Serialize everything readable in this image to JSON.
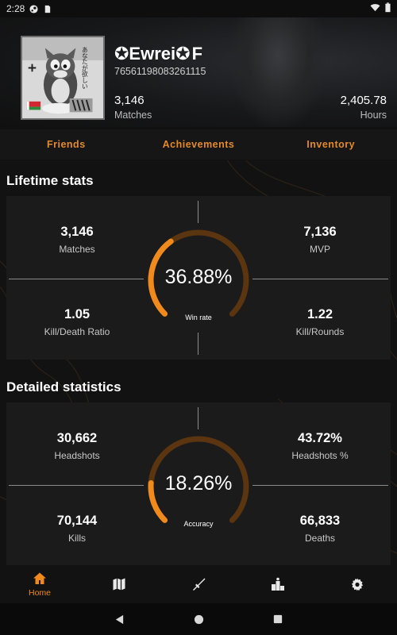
{
  "status_bar": {
    "time": "2:28",
    "left_icons": [
      "steam-notification-icon",
      "sd-card-icon"
    ],
    "right_icons": [
      "wifi-icon",
      "battery-icon"
    ]
  },
  "profile": {
    "username": "✪Ewrei✪",
    "username_suffix": "F",
    "steam_id": "76561198083261115",
    "matches_value": "3,146",
    "matches_label": "Matches",
    "hours_value": "2,405.78",
    "hours_label": "Hours",
    "avatar_caption": "あなたが欲しい"
  },
  "tabs": [
    {
      "label": "Friends"
    },
    {
      "label": "Achievements"
    },
    {
      "label": "Inventory"
    }
  ],
  "lifetime": {
    "title": "Lifetime stats",
    "matches": {
      "value": "3,146",
      "label": "Matches"
    },
    "mvp": {
      "value": "7,136",
      "label": "MVP"
    },
    "kd": {
      "value": "1.05",
      "label": "Kill/Death Ratio"
    },
    "kr": {
      "value": "1.22",
      "label": "Kill/Rounds"
    },
    "gauge": {
      "value": "36.88%",
      "label": "Win rate",
      "fraction": 0.3688
    }
  },
  "detailed": {
    "title": "Detailed statistics",
    "headshots": {
      "value": "30,662",
      "label": "Headshots"
    },
    "headshots_pct": {
      "value": "43.72%",
      "label": "Headshots %"
    },
    "kills": {
      "value": "70,144",
      "label": "Kills"
    },
    "deaths": {
      "value": "66,833",
      "label": "Deaths"
    },
    "gauge": {
      "value": "18.26%",
      "label": "Accuracy",
      "fraction": 0.1826
    }
  },
  "bottom_nav": [
    {
      "label": "Home",
      "icon": "home-icon",
      "active": true
    },
    {
      "label": "",
      "icon": "map-icon",
      "active": false
    },
    {
      "label": "",
      "icon": "weapon-icon",
      "active": false
    },
    {
      "label": "",
      "icon": "leaderboard-icon",
      "active": false
    },
    {
      "label": "",
      "icon": "settings-icon",
      "active": false
    }
  ],
  "colors": {
    "accent": "#f08a1c",
    "gauge_track": "#5a3510",
    "background": "#121212",
    "card": "#1b1b1b"
  }
}
